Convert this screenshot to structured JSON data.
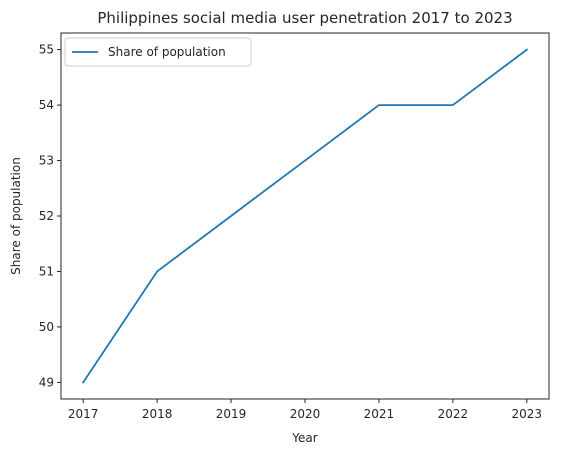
{
  "chart_data": {
    "type": "line",
    "title": "Philippines social media user penetration 2017 to 2023",
    "xlabel": "Year",
    "ylabel": "Share of population",
    "x": [
      2017,
      2018,
      2019,
      2020,
      2021,
      2022,
      2023
    ],
    "series": [
      {
        "name": "Share of population",
        "values": [
          49,
          51,
          52,
          53,
          54,
          54,
          55
        ],
        "color": "#1f77b4"
      }
    ],
    "xlim": [
      2016.7,
      2023.3
    ],
    "ylim": [
      48.7,
      55.3
    ],
    "xticks": [
      "2017",
      "2018",
      "2019",
      "2020",
      "2021",
      "2022",
      "2023"
    ],
    "yticks": [
      "49",
      "50",
      "51",
      "52",
      "53",
      "54",
      "55"
    ],
    "grid": false,
    "legend": "top-left"
  }
}
